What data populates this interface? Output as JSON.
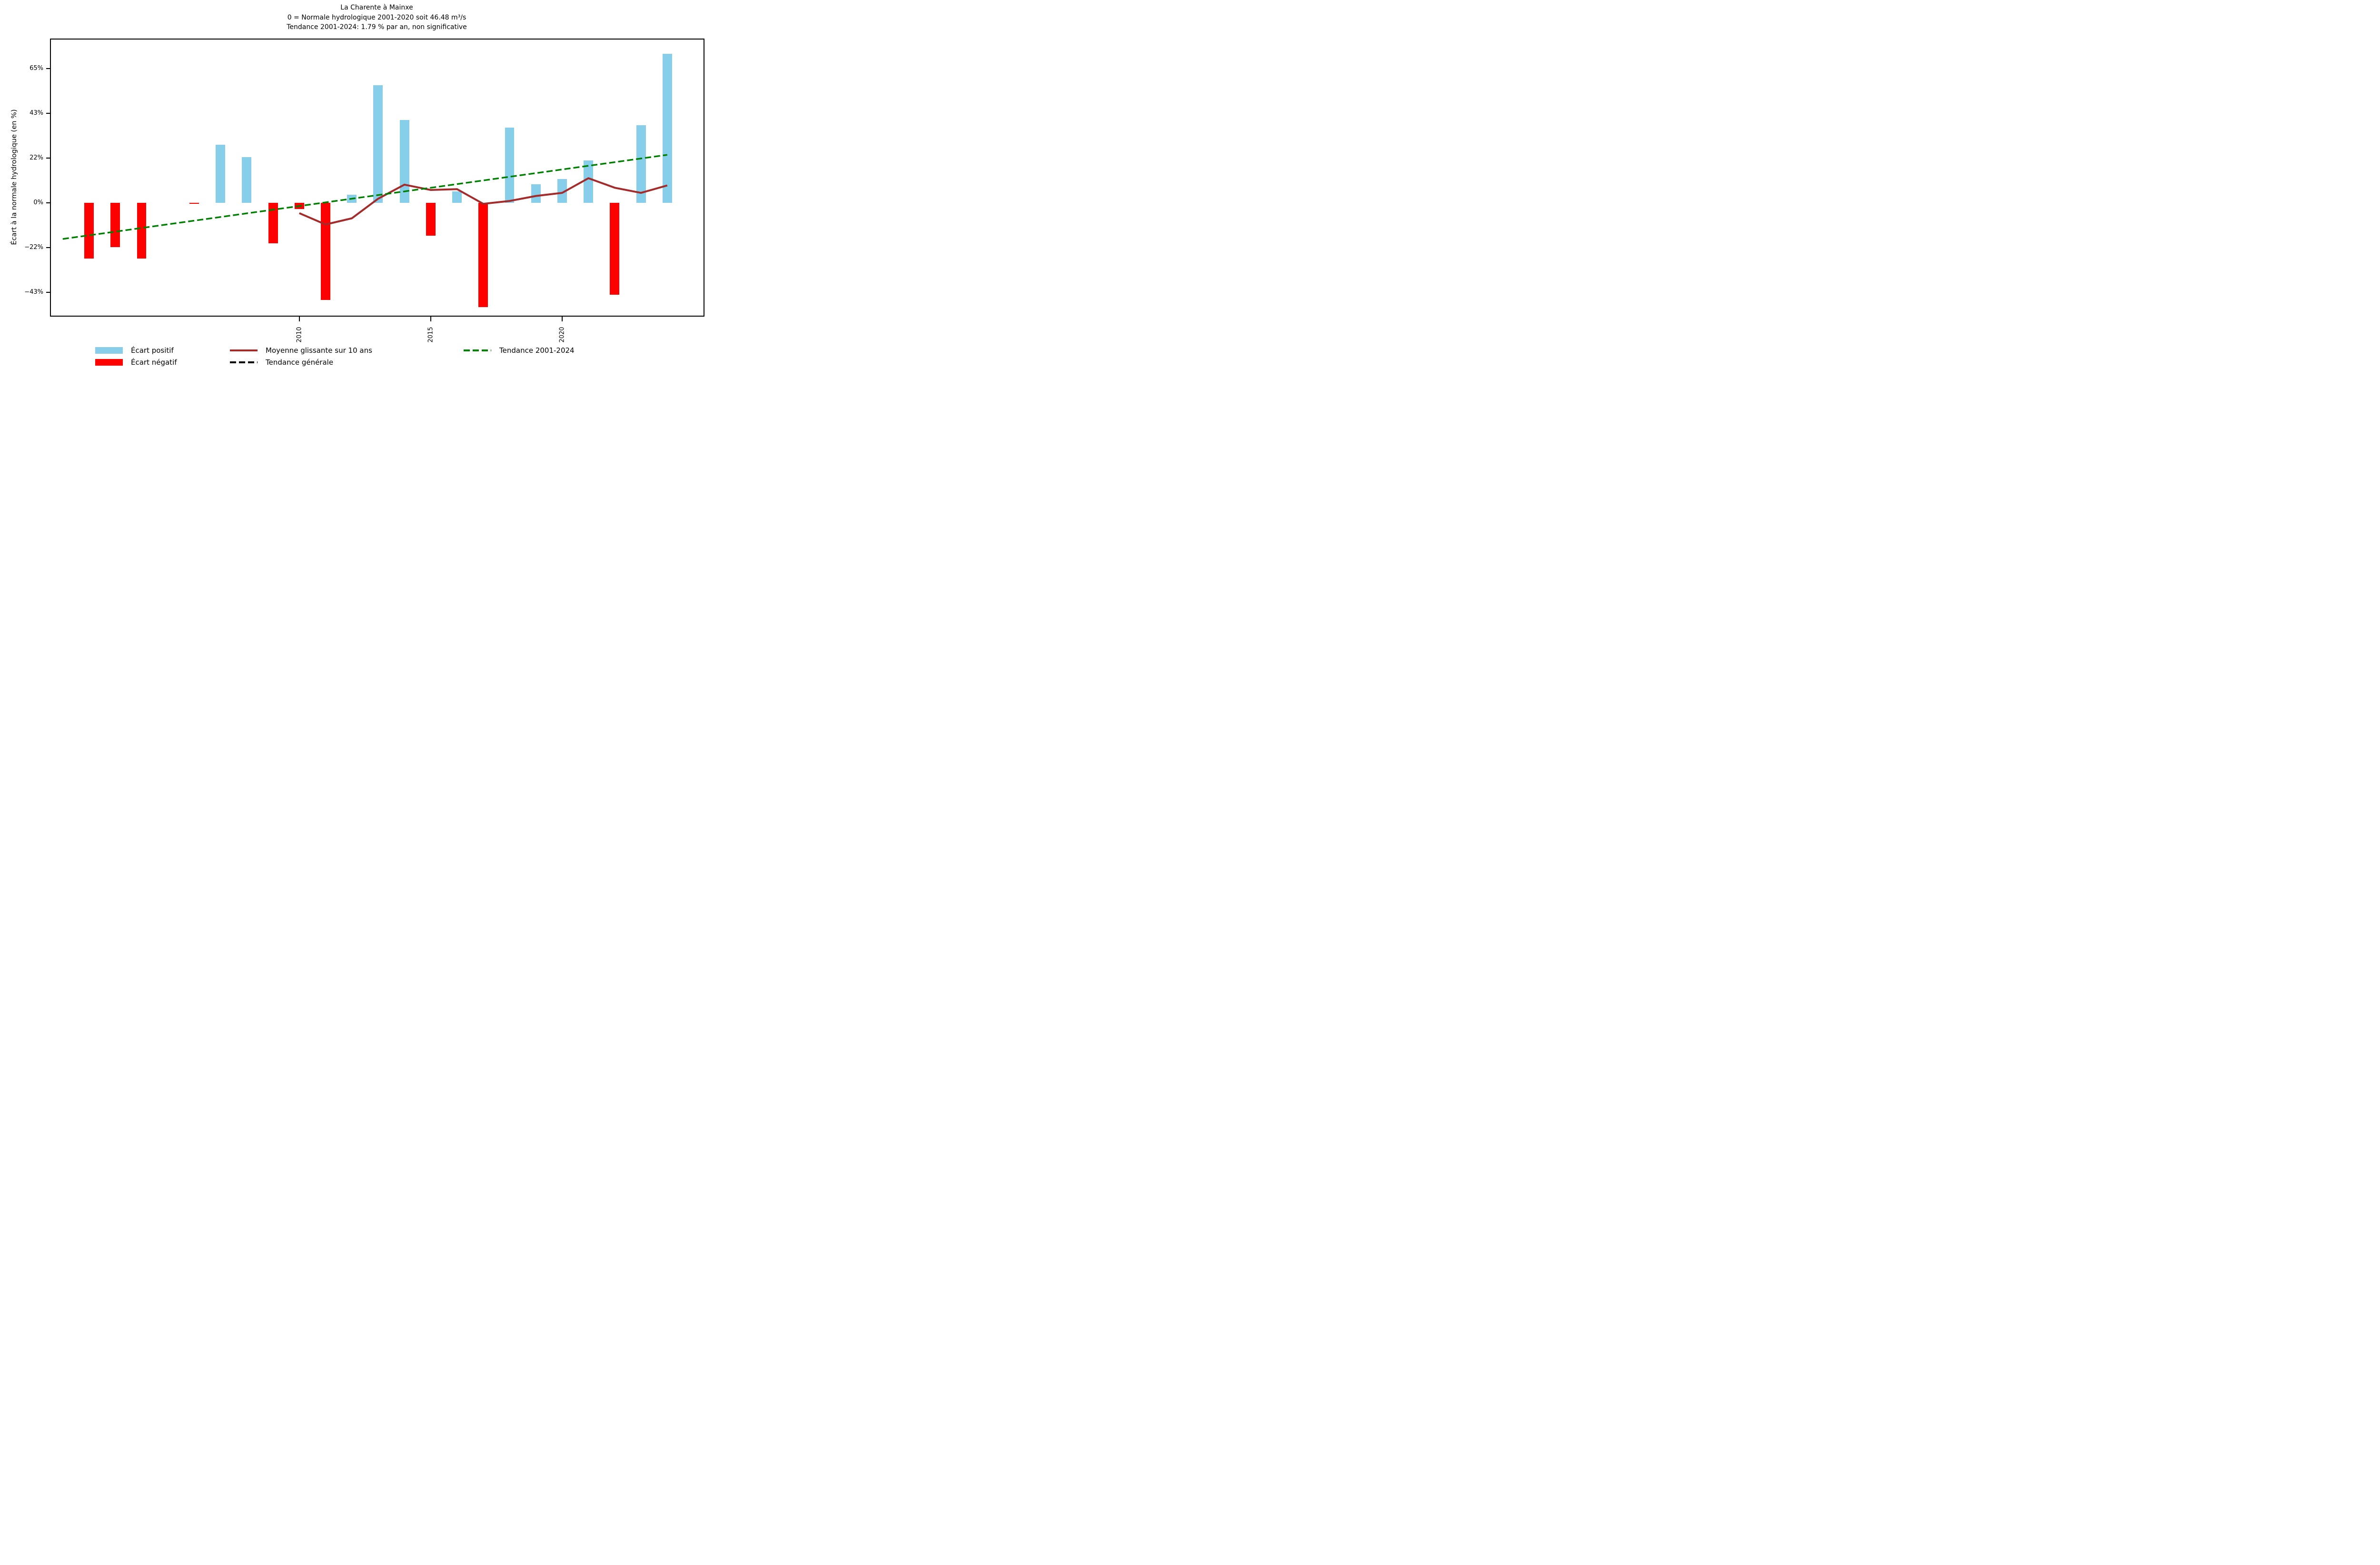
{
  "chart_data": {
    "type": "bar",
    "title": {
      "line1": "La Charente à Mainxe",
      "line2": "0 = Normale hydrologique 2001-2020 soit 46.48 m³/s",
      "line3": "Tendance 2001-2024: 1.79 % par an, non significative"
    },
    "y_axis": {
      "label": "Écart à la normale hydrologique (en %)",
      "range": [
        -54.6,
        79.0
      ],
      "grid": false,
      "ticks": [
        {
          "v": 65,
          "label": "65%"
        },
        {
          "v": 43.33,
          "label": "43%"
        },
        {
          "v": 21.67,
          "label": "22%"
        },
        {
          "v": 0,
          "label": "0%"
        },
        {
          "v": -21.67,
          "label": "−22%"
        },
        {
          "v": -43.33,
          "label": "−43%"
        }
      ]
    },
    "x_axis": {
      "range": [
        2000.55,
        2025.38
      ],
      "ticks": [
        {
          "v": 2010,
          "label": "2010"
        },
        {
          "v": 2015,
          "label": "2015"
        },
        {
          "v": 2020,
          "label": "2020"
        }
      ]
    },
    "bars": {
      "bar_width_years": 0.36,
      "years": [
        2001,
        2002,
        2003,
        2004,
        2005,
        2006,
        2007,
        2008,
        2009,
        2010,
        2011,
        2012,
        2013,
        2014,
        2015,
        2016,
        2017,
        2018,
        2019,
        2020,
        2021,
        2022,
        2023,
        2024
      ],
      "values": [
        0,
        -27,
        -21.5,
        -27,
        0,
        -0.5,
        28,
        22,
        -19.5,
        -3,
        -47,
        4,
        57,
        40,
        -16,
        5.5,
        -50.5,
        36.5,
        9,
        11.5,
        20.5,
        -44.5,
        37.5,
        72
      ]
    },
    "lines": [
      {
        "name": "moyenne-glissante-10-ans",
        "color_key": "rolling",
        "dash": null,
        "width": 4,
        "x": [
          2010,
          2011,
          2012,
          2013,
          2014,
          2015,
          2016,
          2017,
          2018,
          2019,
          2020,
          2021,
          2022,
          2023,
          2024
        ],
        "y": [
          -5,
          -10.5,
          -7.5,
          2,
          8.8,
          6.2,
          6.6,
          -0.5,
          0.9,
          3.3,
          4.8,
          11.9,
          7.3,
          4.8,
          8.4
        ]
      },
      {
        "name": "tendance-2001-2024",
        "color_key": "trend",
        "dash": "13 6",
        "width": 3.4,
        "x": [
          2001,
          2024
        ],
        "y": [
          -17.5,
          23.2
        ]
      }
    ],
    "colors": {
      "positive": "#87CEEB",
      "negative": "#FF0000",
      "rolling": "#A52A2A",
      "trend": "#008000",
      "general_trend": "#000000",
      "axis": "#000000"
    }
  },
  "legend": {
    "rows": [
      [
        {
          "type": "patch",
          "color_key": "positive",
          "label": "Écart positif"
        },
        {
          "type": "line",
          "color_key": "rolling",
          "label": "Moyenne glissante sur 10 ans"
        },
        {
          "type": "dash",
          "color_key": "trend",
          "label": "Tendance 2001-2024"
        }
      ],
      [
        {
          "type": "patch",
          "color_key": "negative",
          "label": "Écart négatif"
        },
        {
          "type": "dash",
          "color_key": "general_trend",
          "label": "Tendance générale"
        }
      ]
    ]
  }
}
